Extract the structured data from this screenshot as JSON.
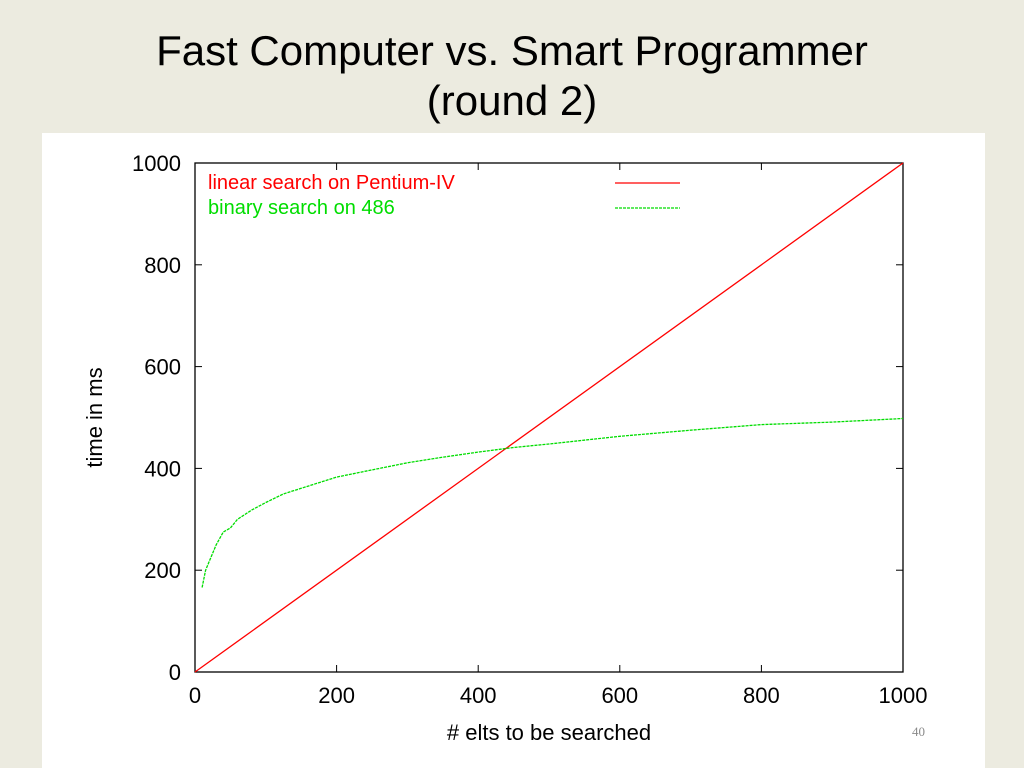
{
  "slide": {
    "title_line1": "Fast Computer vs. Smart Programmer",
    "title_line2": "(round 2)",
    "page_number": "40"
  },
  "chart_data": {
    "type": "line",
    "xlabel": "# elts to be searched",
    "ylabel": "time in ms",
    "xlim": [
      0,
      1000
    ],
    "ylim": [
      0,
      1000
    ],
    "xticks": [
      0,
      200,
      400,
      600,
      800,
      1000
    ],
    "yticks": [
      0,
      200,
      400,
      600,
      800,
      1000
    ],
    "grid": false,
    "legend_position": "top-left",
    "series": [
      {
        "name": "linear search on Pentium-IV",
        "color": "#FF0000",
        "line_style": "solid",
        "x": [
          0,
          1000
        ],
        "y": [
          0,
          1000
        ]
      },
      {
        "name": "binary search on 486",
        "color": "#00DD00",
        "line_style": "dashed",
        "x": [
          10,
          15,
          20,
          30,
          40,
          50,
          60,
          80,
          100,
          125,
          150,
          200,
          250,
          300,
          350,
          400,
          450,
          500,
          600,
          700,
          800,
          900,
          1000
        ],
        "y": [
          166,
          200,
          217,
          250,
          275,
          283,
          300,
          318,
          333,
          350,
          361,
          383,
          397,
          411,
          422,
          432,
          441,
          448,
          463,
          475,
          486,
          491,
          498
        ]
      }
    ]
  }
}
